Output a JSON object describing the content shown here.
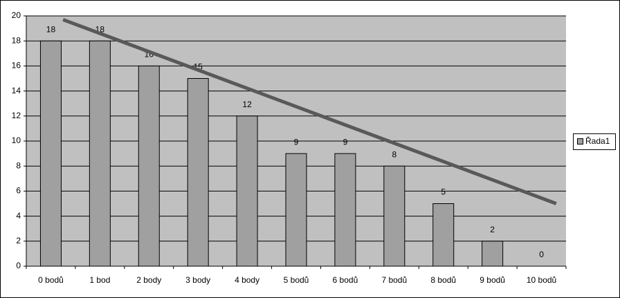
{
  "chart_data": {
    "type": "bar",
    "categories": [
      "0 bodů",
      "1 bod",
      "2 body",
      "3 body",
      "4 body",
      "5 bodů",
      "6 bodů",
      "7 bodů",
      "8 bodů",
      "9 bodů",
      "10 bodů"
    ],
    "series": [
      {
        "name": "Řada1",
        "color": "#a0a0a0",
        "values": [
          18,
          18,
          16,
          15,
          12,
          9,
          9,
          8,
          5,
          2,
          0
        ]
      }
    ],
    "ylim": [
      0,
      20
    ],
    "yticks": [
      0,
      2,
      4,
      6,
      8,
      10,
      12,
      14,
      16,
      18,
      20
    ],
    "grid": true,
    "plot_background": "#c0c0c0",
    "legend": "right",
    "trendline": {
      "x": [
        0.25,
        10.3
      ],
      "values": [
        19.7,
        5
      ],
      "color": "#595959"
    }
  }
}
